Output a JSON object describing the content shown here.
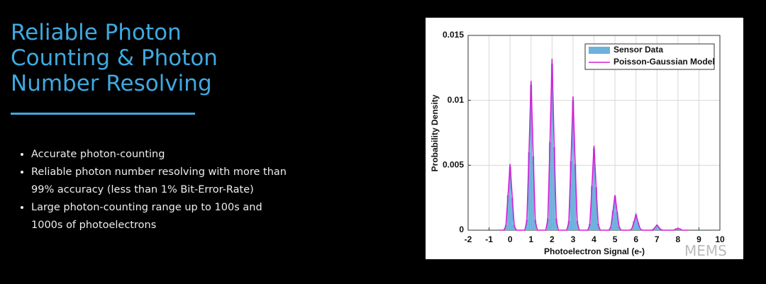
{
  "slide": {
    "title_lines": [
      "Reliable Photon",
      "Counting & Photon",
      "Number Resolving"
    ],
    "bullets": [
      "Accurate photon-counting",
      "Reliable photon number resolving with more than 99% accuracy (less than 1% Bit-Error-Rate)",
      "Large photon-counting range up to 100s and 1000s of photoelectrons"
    ],
    "watermark": "MEMS"
  },
  "chart_data": {
    "type": "line",
    "x_label": "Photoelectron Signal (e-)",
    "y_label": "Probability Density",
    "xlim": [
      -2,
      10
    ],
    "xticks": [
      -2,
      -1,
      0,
      1,
      2,
      3,
      4,
      5,
      6,
      7,
      8,
      9,
      10
    ],
    "ylim": [
      0,
      0.015
    ],
    "yticks": [
      0,
      0.005,
      0.01,
      0.015
    ],
    "grid": true,
    "legend": "upper right",
    "x": [
      -0.5,
      -0.4,
      -0.3,
      -0.2,
      -0.1,
      0,
      0.1,
      0.2,
      0.3,
      0.4,
      0.5,
      0.6,
      0.7,
      0.8,
      0.9,
      1,
      1.1,
      1.2,
      1.3,
      1.4,
      1.5,
      1.6,
      1.7,
      1.8,
      1.9,
      2,
      2.1,
      2.2,
      2.3,
      2.4,
      2.5,
      2.6,
      2.7,
      2.8,
      2.9,
      3,
      3.1,
      3.2,
      3.3,
      3.4,
      3.5,
      3.6,
      3.7,
      3.8,
      3.9,
      4,
      4.1,
      4.2,
      4.3,
      4.4,
      4.5,
      4.6,
      4.7,
      4.8,
      4.9,
      5,
      5.1,
      5.2,
      5.3,
      5.4,
      5.5,
      5.6,
      5.7,
      5.8,
      5.9,
      6,
      6.1,
      6.2,
      6.3,
      6.4,
      6.5,
      6.6,
      6.7,
      6.8,
      6.9,
      7,
      7.1,
      7.2,
      7.3,
      7.4,
      7.5,
      7.6,
      7.7,
      7.8,
      7.9,
      8,
      8.1,
      8.2,
      8.3,
      8.4,
      8.5
    ],
    "series": [
      {
        "name": "Sensor Data",
        "type": "bar",
        "color": "#6bb2dc",
        "values": [
          0,
          0,
          0,
          0.0004,
          0.0027,
          0.0049,
          0.0025,
          0.0004,
          0,
          0,
          0,
          0,
          0,
          0.0008,
          0.006,
          0.0112,
          0.0057,
          0.0008,
          0,
          0,
          0,
          0,
          0,
          0.0009,
          0.0068,
          0.0128,
          0.0064,
          0.0009,
          0,
          0,
          0,
          0,
          0,
          0.0007,
          0.0053,
          0.01,
          0.0051,
          0.0007,
          0,
          0,
          0,
          0,
          0,
          0.0005,
          0.0034,
          0.0063,
          0.0033,
          0.0005,
          0,
          0,
          0,
          0,
          0,
          0.0003,
          0.0015,
          0.0026,
          0.0014,
          0.0003,
          0,
          0,
          0,
          0,
          0,
          0.0001,
          0.0007,
          0.0012,
          0.0006,
          0.0001,
          0,
          0,
          0,
          0,
          0,
          0.0001,
          0.0002,
          0.0004,
          0.0002,
          0.0001,
          0,
          0,
          0,
          0,
          0,
          0,
          0.0001,
          0.0001,
          0.0001,
          0,
          0,
          0,
          0
        ]
      },
      {
        "name": "Poisson-Gaussian Model",
        "type": "line",
        "color": "#d61fd6",
        "values": [
          0,
          0,
          0,
          0.0003,
          0.0026,
          0.0051,
          0.0026,
          0.0003,
          0,
          0,
          0,
          0,
          0,
          0.0007,
          0.0058,
          0.0115,
          0.0058,
          0.0007,
          0,
          0,
          0,
          0,
          0,
          0.0008,
          0.0066,
          0.0132,
          0.0066,
          0.0008,
          0,
          0,
          0,
          0,
          0,
          0.0006,
          0.0052,
          0.0103,
          0.0052,
          0.0006,
          0,
          0,
          0,
          0,
          0,
          0.0004,
          0.0033,
          0.0065,
          0.0033,
          0.0004,
          0,
          0,
          0,
          0,
          0,
          0.0002,
          0.0014,
          0.0027,
          0.0014,
          0.0002,
          0,
          0,
          0,
          0,
          0,
          0.0001,
          0.0006,
          0.0012,
          0.0006,
          0.0001,
          0,
          0,
          0,
          0,
          0,
          0,
          0.0002,
          0.0004,
          0.0002,
          0,
          0,
          0,
          0,
          0,
          0,
          0,
          0.0001,
          0.0001,
          0.0001,
          0,
          0,
          0,
          0
        ]
      }
    ]
  }
}
